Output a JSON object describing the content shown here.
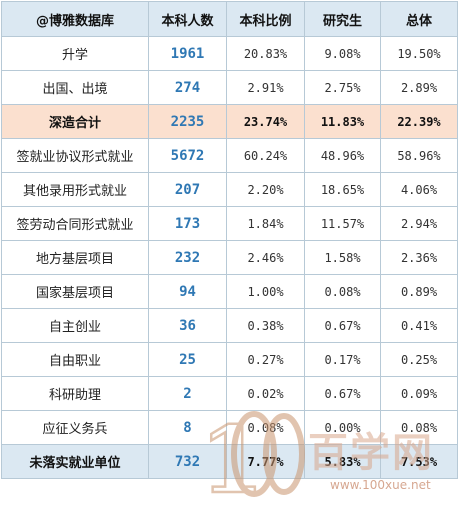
{
  "table": {
    "headers": [
      "@博雅数据库",
      "本科人数",
      "本科比例",
      "研究生",
      "总体"
    ],
    "rows": [
      {
        "label": "升学",
        "count": "1961",
        "ug_ratio": "20.83%",
        "grad": "9.08%",
        "total": "19.50%"
      },
      {
        "label": "出国、出境",
        "count": "274",
        "ug_ratio": "2.91%",
        "grad": "2.75%",
        "total": "2.89%"
      },
      {
        "label": "深造合计",
        "count": "2235",
        "ug_ratio": "23.74%",
        "grad": "11.83%",
        "total": "22.39%"
      },
      {
        "label": "签就业协议形式就业",
        "count": "5672",
        "ug_ratio": "60.24%",
        "grad": "48.96%",
        "total": "58.96%"
      },
      {
        "label": "其他录用形式就业",
        "count": "207",
        "ug_ratio": "2.20%",
        "grad": "18.65%",
        "total": "4.06%"
      },
      {
        "label": "签劳动合同形式就业",
        "count": "173",
        "ug_ratio": "1.84%",
        "grad": "11.57%",
        "total": "2.94%"
      },
      {
        "label": "地方基层项目",
        "count": "232",
        "ug_ratio": "2.46%",
        "grad": "1.58%",
        "total": "2.36%"
      },
      {
        "label": "国家基层项目",
        "count": "94",
        "ug_ratio": "1.00%",
        "grad": "0.08%",
        "total": "0.89%"
      },
      {
        "label": "自主创业",
        "count": "36",
        "ug_ratio": "0.38%",
        "grad": "0.67%",
        "total": "0.41%"
      },
      {
        "label": "自由职业",
        "count": "25",
        "ug_ratio": "0.27%",
        "grad": "0.17%",
        "total": "0.25%"
      },
      {
        "label": "科研助理",
        "count": "2",
        "ug_ratio": "0.02%",
        "grad": "0.67%",
        "total": "0.09%"
      },
      {
        "label": "应征义务兵",
        "count": "8",
        "ug_ratio": "0.08%",
        "grad": "0.00%",
        "total": "0.08%"
      },
      {
        "label": "未落实就业单位",
        "count": "732",
        "ug_ratio": "7.77%",
        "grad": "5.83%",
        "total": "7.53%"
      }
    ]
  },
  "watermark": {
    "logo_text": "100",
    "brand": "百学网",
    "url": "www.100xue.net"
  },
  "colors": {
    "header_bg": "#dbe8f2",
    "highlight_bg": "#fbe0cf",
    "count_text": "#2f78b4",
    "border": "#b7c9d6"
  }
}
